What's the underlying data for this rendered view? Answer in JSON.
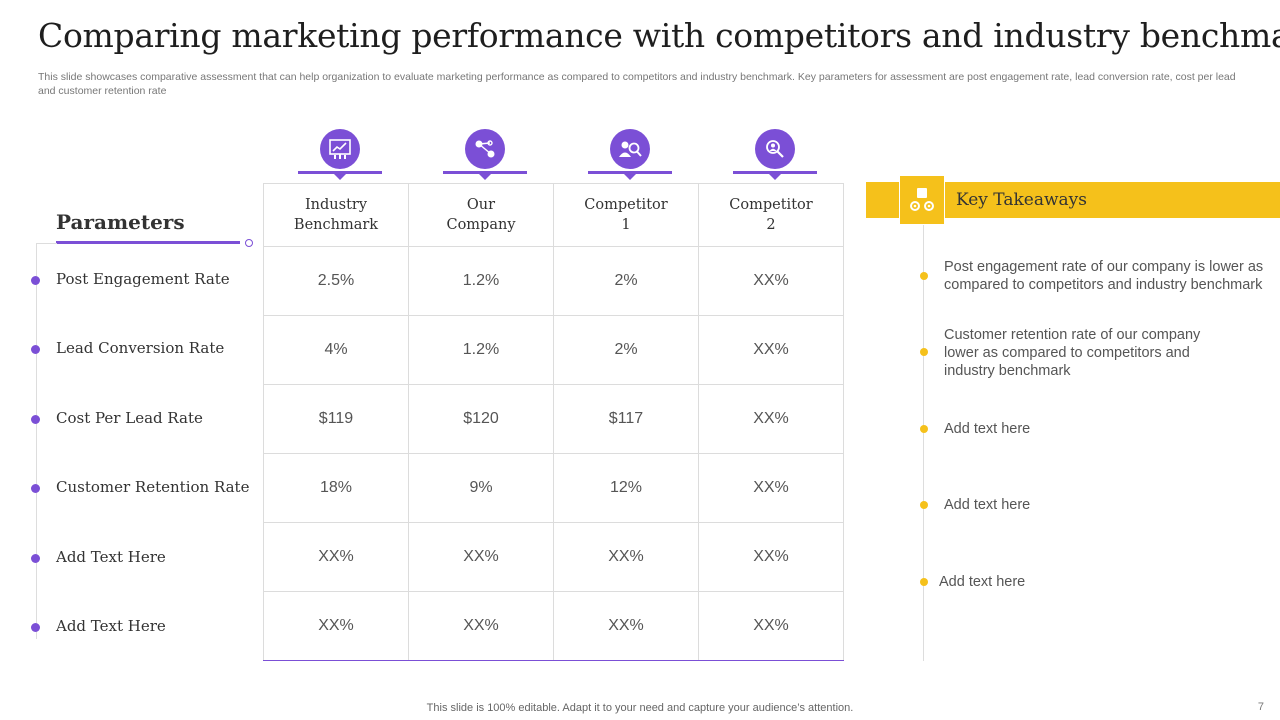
{
  "title": "Comparing marketing performance with competitors and industry benchmark",
  "subtitle": "This slide showcases comparative assessment that can help organization to evaluate marketing performance as compared to competitors and industry benchmark. Key parameters for assessment are post engagement rate, lead conversion rate, cost per lead and customer retention rate",
  "parameters": {
    "title": "Parameters",
    "items": [
      "Post Engagement Rate",
      "Lead Conversion Rate",
      "Cost Per Lead Rate",
      "Customer Retention Rate",
      "Add Text Here",
      "Add Text Here"
    ]
  },
  "columns": [
    {
      "line1": "Industry",
      "line2": "Benchmark",
      "icon": "chart-presentation-icon"
    },
    {
      "line1": "Our",
      "line2": "Company",
      "icon": "network-nodes-icon"
    },
    {
      "line1": "Competitor",
      "line2": "1",
      "icon": "team-search-icon"
    },
    {
      "line1": "Competitor",
      "line2": "2",
      "icon": "people-magnifier-icon"
    }
  ],
  "rows": [
    [
      "2.5%",
      "1.2%",
      "2%",
      "XX%"
    ],
    [
      "4%",
      "1.2%",
      "2%",
      "XX%"
    ],
    [
      "$119",
      "$120",
      "$117",
      "XX%"
    ],
    [
      "18%",
      "9%",
      "12%",
      "XX%"
    ],
    [
      "XX%",
      "XX%",
      "XX%",
      "XX%"
    ],
    [
      "XX%",
      "XX%",
      "XX%",
      "XX%"
    ]
  ],
  "key_takeaways": {
    "title": "Key Takeaways",
    "icon": "puzzle-gears-icon",
    "items": [
      "Post engagement rate of our company is lower as compared to competitors and industry benchmark",
      "Customer retention rate of our company lower as compared to competitors and industry benchmark",
      "Add text here",
      "Add text here",
      "Add text here"
    ]
  },
  "footer": "This slide is 100% editable. Adapt it to your need and capture your audience’s attention.",
  "page_number": "7",
  "colors": {
    "accent_purple": "#7b4fd6",
    "accent_yellow": "#f5c11b"
  }
}
